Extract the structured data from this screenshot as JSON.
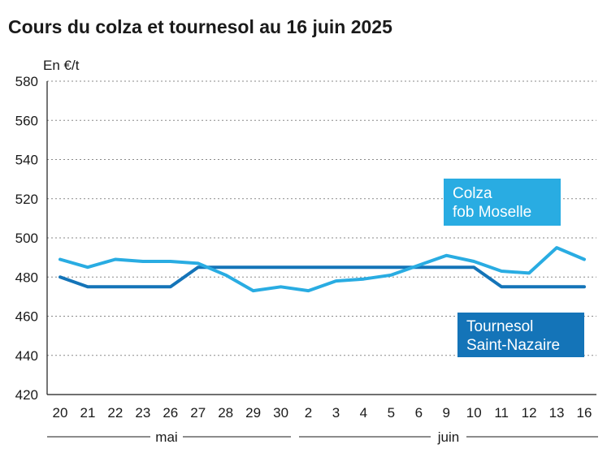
{
  "chart_data": {
    "type": "line",
    "title": "Cours du colza et tournesol au 16 juin 2025",
    "ylabel": "En €/t",
    "ylim": [
      420,
      580
    ],
    "yticks": [
      420,
      440,
      460,
      480,
      500,
      520,
      540,
      560,
      580
    ],
    "x": [
      "20",
      "21",
      "22",
      "23",
      "26",
      "27",
      "28",
      "29",
      "30",
      "2",
      "3",
      "4",
      "5",
      "6",
      "9",
      "10",
      "11",
      "12",
      "13",
      "16"
    ],
    "months": [
      {
        "label": "mai",
        "start": 0,
        "end": 8
      },
      {
        "label": "juin",
        "start": 9,
        "end": 19
      }
    ],
    "grid": true,
    "series": [
      {
        "name": "Colza fob Moselle",
        "label_lines": [
          "Colza",
          "fob Moselle"
        ],
        "color": "#29ace2",
        "values": [
          489,
          485,
          489,
          488,
          488,
          487,
          481,
          473,
          475,
          473,
          478,
          479,
          481,
          486,
          491,
          488,
          483,
          482,
          495,
          489
        ]
      },
      {
        "name": "Tournesol Saint-Nazaire",
        "label_lines": [
          "Tournesol",
          "Saint-Nazaire"
        ],
        "color": "#1474b8",
        "values": [
          480,
          475,
          475,
          475,
          475,
          485,
          485,
          485,
          485,
          485,
          485,
          485,
          485,
          485,
          485,
          485,
          475,
          475,
          475,
          475
        ]
      }
    ]
  }
}
